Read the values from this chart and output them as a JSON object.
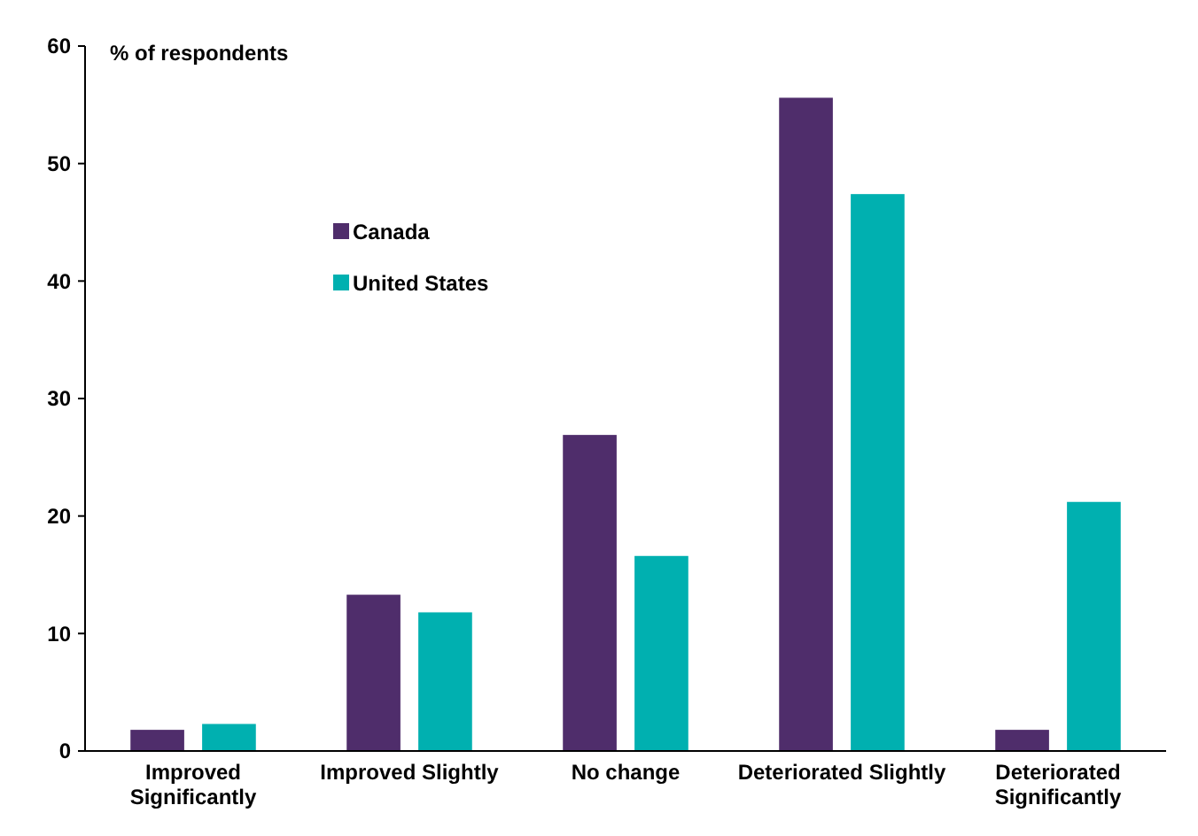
{
  "chart_data": {
    "type": "bar",
    "ylabel": "% of respondents",
    "categories": [
      "Improved Significantly",
      "Improved Slightly",
      "No change",
      "Deteriorated Slightly",
      "Deteriorated Significantly"
    ],
    "series": [
      {
        "name": "Canada",
        "color": "#4f2d6b",
        "values": [
          1.8,
          13.3,
          26.9,
          55.6,
          1.8
        ]
      },
      {
        "name": "United States",
        "color": "#00b0b0",
        "values": [
          2.3,
          11.8,
          16.6,
          47.4,
          21.2
        ]
      }
    ],
    "ylim": [
      0,
      60
    ],
    "yticks": [
      0,
      10,
      20,
      30,
      40,
      50,
      60
    ],
    "grid": false,
    "legend": "top left"
  }
}
